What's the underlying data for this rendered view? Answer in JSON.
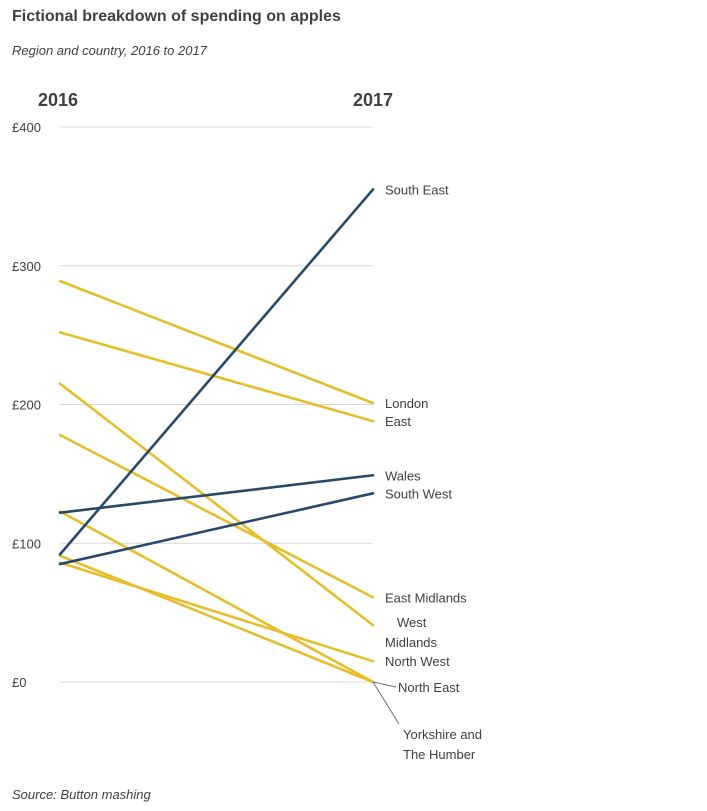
{
  "title": "Fictional breakdown of spending on apples",
  "subtitle": "Region and country, 2016 to 2017",
  "source": "Source: Button mashing",
  "colors": {
    "highlight": "#264a6b",
    "other": "#e6be2c",
    "grid": "#d9d9d9",
    "text": "#404040",
    "leader": "#6f6f6f"
  },
  "chart_data": {
    "type": "line",
    "subtype": "slope",
    "x": [
      "2016",
      "2017"
    ],
    "y_ticks": [
      "£0",
      "£100",
      "£200",
      "£300",
      "£400"
    ],
    "y_tick_values": [
      0,
      100,
      200,
      300,
      400
    ],
    "ylim": [
      0,
      400
    ],
    "grid": true,
    "series": [
      {
        "name": "South East",
        "label_lines": [
          "South East"
        ],
        "values": [
          92,
          355
        ],
        "highlight": true
      },
      {
        "name": "London",
        "label_lines": [
          "London"
        ],
        "values": [
          289,
          201
        ],
        "highlight": false
      },
      {
        "name": "East",
        "label_lines": [
          "East"
        ],
        "values": [
          252,
          188
        ],
        "highlight": false
      },
      {
        "name": "Wales",
        "label_lines": [
          "Wales"
        ],
        "values": [
          122,
          149
        ],
        "highlight": true
      },
      {
        "name": "South West",
        "label_lines": [
          "South West"
        ],
        "values": [
          85,
          136
        ],
        "highlight": true
      },
      {
        "name": "East Midlands",
        "label_lines": [
          "East Midlands"
        ],
        "values": [
          178,
          61
        ],
        "highlight": false
      },
      {
        "name": "West Midlands",
        "label_lines": [
          "West",
          "Midlands"
        ],
        "values": [
          215,
          41
        ],
        "highlight": false
      },
      {
        "name": "North West",
        "label_lines": [
          "North West"
        ],
        "values": [
          86,
          15
        ],
        "highlight": false
      },
      {
        "name": "North East",
        "label_lines": [
          "North East"
        ],
        "values": [
          123,
          0
        ],
        "highlight": false
      },
      {
        "name": "Yorkshire and The Humber",
        "label_lines": [
          "Yorkshire and",
          "The Humber"
        ],
        "values": [
          91,
          0
        ],
        "highlight": false
      }
    ]
  }
}
